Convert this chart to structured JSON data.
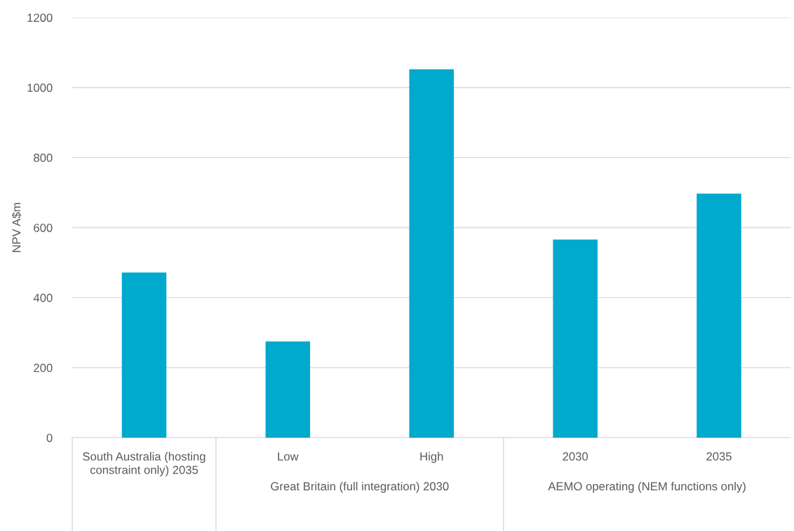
{
  "chart_data": {
    "type": "bar",
    "ylabel": "NPV A$m",
    "categories": [
      "South Australia (hosting constraint only) 2035",
      "Low",
      "High",
      "2030",
      "2035"
    ],
    "values": [
      472,
      275,
      1052,
      566,
      697
    ],
    "color": "#00a9ce",
    "ylim": [
      0,
      1200
    ],
    "yticks": [
      0,
      200,
      400,
      600,
      800,
      1000,
      1200
    ],
    "grid": "y",
    "annotations": [
      "Great Britain (full integration) 2030",
      "AEMO operating (NEM functions only)"
    ]
  }
}
